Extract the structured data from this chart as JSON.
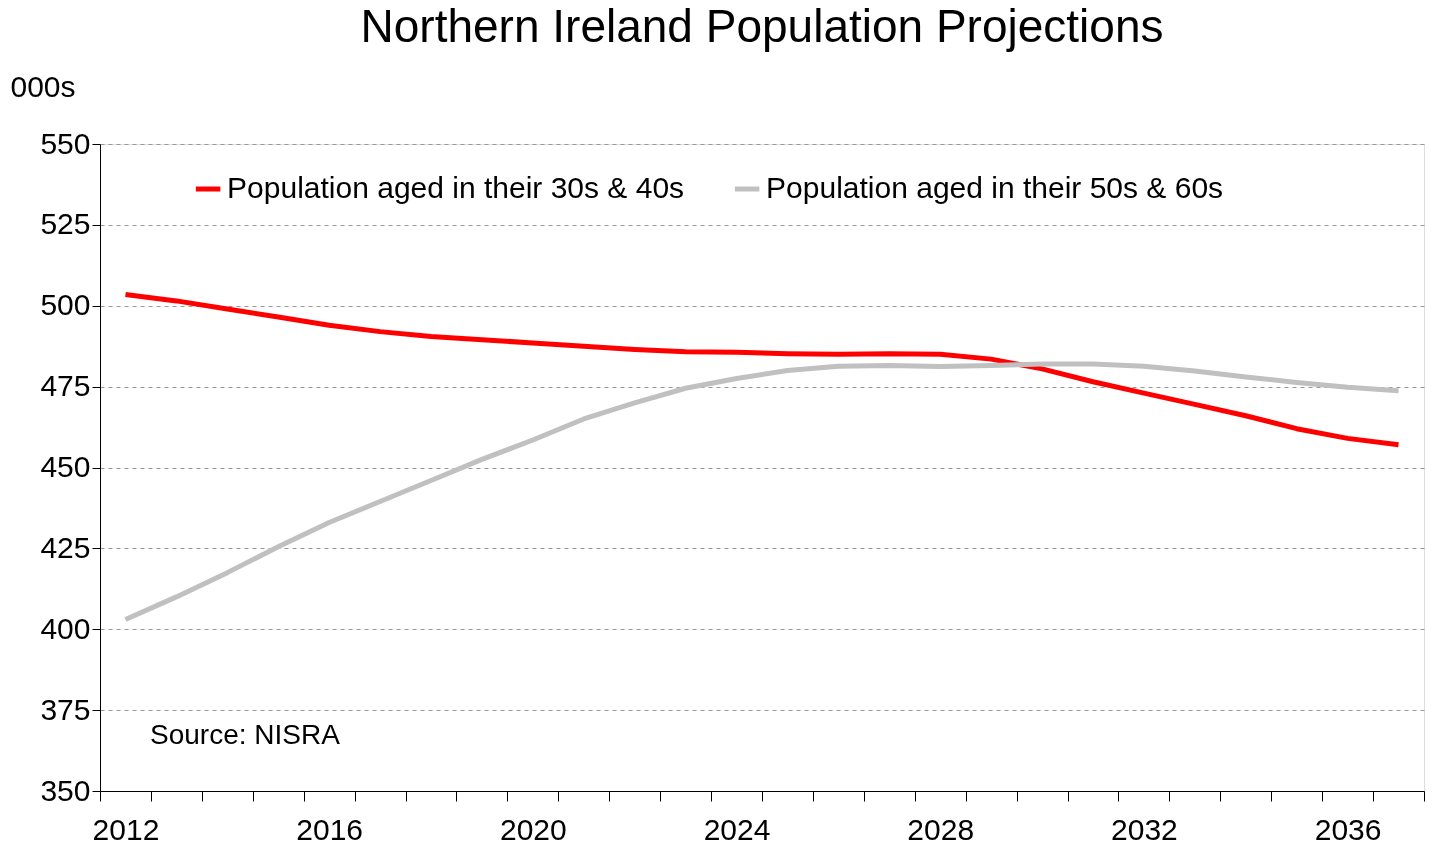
{
  "chart_data": {
    "type": "line",
    "title": "Northern Ireland Population Projections",
    "ylabel": "000s",
    "categories": [
      "2012",
      null,
      null,
      null,
      "2016",
      null,
      null,
      null,
      "2020",
      null,
      null,
      null,
      "2024",
      null,
      null,
      null,
      "2028",
      null,
      null,
      null,
      "2032",
      null,
      null,
      null,
      "2036",
      null
    ],
    "series": [
      {
        "name": "Population aged in their 30s & 40s",
        "color": "#ff0000",
        "values": [
          503.5,
          501.5,
          499,
          496.5,
          494,
          492,
          490.5,
          489.5,
          488.5,
          487.5,
          486.5,
          485.8,
          485.6,
          485.2,
          485,
          485.2,
          485,
          483.5,
          480.5,
          476.5,
          473,
          469.5,
          466,
          462,
          459,
          457
        ]
      },
      {
        "name": "Population aged in their 50s & 60s",
        "color": "#c0c0c0",
        "values": [
          403,
          410,
          417.5,
          425.5,
          433,
          439.5,
          446,
          452.5,
          458.5,
          465,
          470,
          474.5,
          477.5,
          480,
          481.3,
          481.5,
          481.2,
          481.5,
          482,
          482,
          481.3,
          479.8,
          478,
          476.3,
          474.8,
          473.7
        ]
      }
    ],
    "ylim": [
      350,
      550
    ],
    "yticks": [
      350,
      375,
      400,
      425,
      450,
      475,
      500,
      525,
      550
    ],
    "grid": "y",
    "legend": "top",
    "marker": "none",
    "line_style": "solid",
    "annotations": [
      "Source: NISRA"
    ]
  }
}
